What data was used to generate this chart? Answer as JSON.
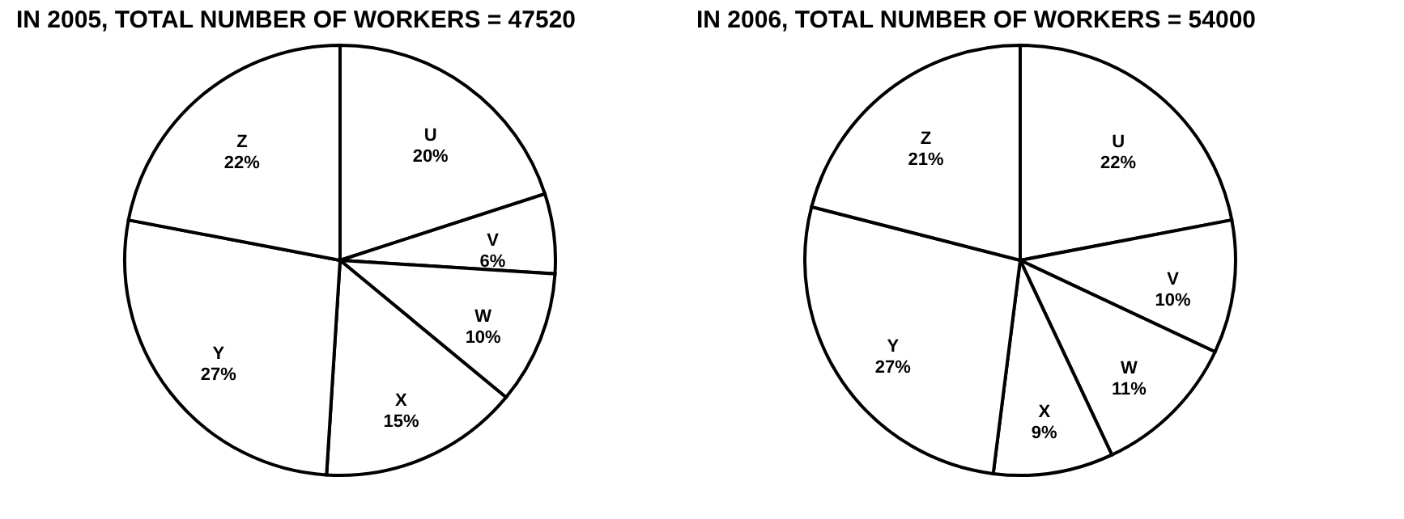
{
  "chart_data": [
    {
      "type": "pie",
      "title": "IN 2005, TOTAL NUMBER OF WORKERS = 47520",
      "categories": [
        "U",
        "V",
        "W",
        "X",
        "Y",
        "Z"
      ],
      "values": [
        20,
        6,
        10,
        15,
        27,
        22
      ],
      "value_labels": [
        "20%",
        "6%",
        "10%",
        "15%",
        "27%",
        "22%"
      ],
      "colors": [
        "#ffffff",
        "#ffffff",
        "#ffffff",
        "#ffffff",
        "#ffffff",
        "#ffffff"
      ],
      "legend": false
    },
    {
      "type": "pie",
      "title": "IN 2006, TOTAL NUMBER OF WORKERS = 54000",
      "categories": [
        "U",
        "V",
        "W",
        "X",
        "Y",
        "Z"
      ],
      "values": [
        22,
        10,
        11,
        9,
        27,
        21
      ],
      "value_labels": [
        "22%",
        "10%",
        "11%",
        "9%",
        "27%",
        "21%"
      ],
      "colors": [
        "#ffffff",
        "#ffffff",
        "#ffffff",
        "#ffffff",
        "#ffffff",
        "#ffffff"
      ],
      "legend": false
    }
  ]
}
